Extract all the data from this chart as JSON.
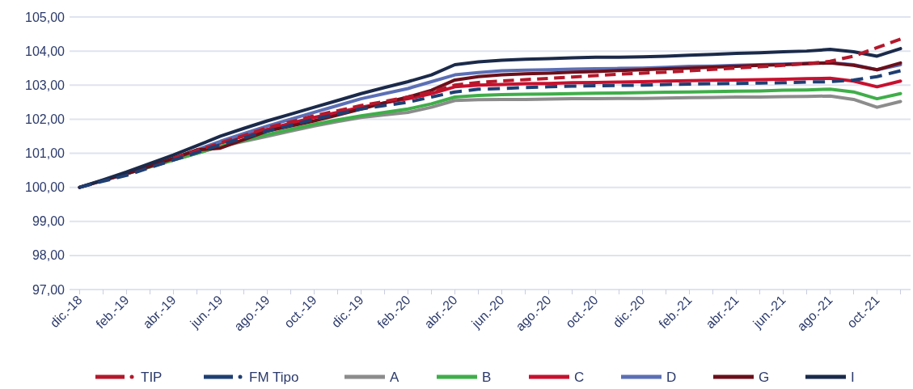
{
  "chart_data": {
    "type": "line",
    "categories": [
      "dic.-18",
      null,
      "feb.-19",
      null,
      "abr.-19",
      null,
      "jun.-19",
      null,
      "ago.-19",
      null,
      "oct.-19",
      null,
      "dic.-19",
      null,
      "feb.-20",
      null,
      "abr.-20",
      null,
      "jun.-20",
      null,
      "ago.-20",
      null,
      "oct.-20",
      null,
      "dic.-20",
      null,
      "feb.-21",
      null,
      "abr.-21",
      null,
      "jun.-21",
      null,
      "ago.-21",
      null,
      "oct.-21",
      null
    ],
    "ylim": [
      97,
      105
    ],
    "yticks": [
      {
        "value": 97,
        "label": "97,00"
      },
      {
        "value": 98,
        "label": "98,00"
      },
      {
        "value": 99,
        "label": "99,00"
      },
      {
        "value": 100,
        "label": "100,00"
      },
      {
        "value": 101,
        "label": "101,00"
      },
      {
        "value": 102,
        "label": "102,00"
      },
      {
        "value": 103,
        "label": "103,00"
      },
      {
        "value": 104,
        "label": "104,00"
      },
      {
        "value": 105,
        "label": "105,00"
      }
    ],
    "grid": "y",
    "legend": "bottom",
    "series": [
      {
        "name": "TIP",
        "color": "#b5182b",
        "line_style": "dashed",
        "values": [
          null,
          null,
          null,
          null,
          100.85,
          101.08,
          101.3,
          101.52,
          101.75,
          101.92,
          102.1,
          102.25,
          102.4,
          102.52,
          102.65,
          102.8,
          103.0,
          103.08,
          103.12,
          103.16,
          103.2,
          103.24,
          103.28,
          103.32,
          103.35,
          103.38,
          103.42,
          103.46,
          103.5,
          103.54,
          103.58,
          103.63,
          103.7,
          103.85,
          104.1,
          104.35
        ]
      },
      {
        "name": "FM Tipo",
        "color": "#1f3f73",
        "line_style": "dashed",
        "values": [
          100,
          100.18,
          100.35,
          100.58,
          100.8,
          101.02,
          101.25,
          101.45,
          101.65,
          101.82,
          102.0,
          102.15,
          102.3,
          102.4,
          102.5,
          102.65,
          102.8,
          102.88,
          102.9,
          102.93,
          102.95,
          102.97,
          102.98,
          102.99,
          103.0,
          103.02,
          103.03,
          103.04,
          103.05,
          103.06,
          103.07,
          103.09,
          103.1,
          103.15,
          103.25,
          103.42
        ]
      },
      {
        "name": "A",
        "color": "#8c8c8c",
        "line_style": "solid",
        "values": [
          100,
          100.2,
          100.4,
          100.6,
          100.8,
          101.0,
          101.2,
          101.35,
          101.5,
          101.65,
          101.8,
          101.93,
          102.05,
          102.13,
          102.2,
          102.35,
          102.55,
          102.57,
          102.58,
          102.58,
          102.59,
          102.6,
          102.6,
          102.61,
          102.61,
          102.62,
          102.63,
          102.64,
          102.65,
          102.65,
          102.66,
          102.67,
          102.68,
          102.58,
          102.35,
          102.52
        ]
      },
      {
        "name": "B",
        "color": "#3fae49",
        "line_style": "solid",
        "values": [
          null,
          null,
          100.4,
          100.6,
          100.8,
          101.0,
          101.2,
          101.38,
          101.55,
          101.7,
          101.85,
          101.98,
          102.1,
          102.2,
          102.3,
          102.45,
          102.65,
          102.7,
          102.72,
          102.73,
          102.74,
          102.75,
          102.76,
          102.77,
          102.78,
          102.79,
          102.8,
          102.81,
          102.82,
          102.83,
          102.85,
          102.86,
          102.88,
          102.8,
          102.6,
          102.75
        ]
      },
      {
        "name": "C",
        "color": "#c8102e",
        "line_style": "solid",
        "values": [
          null,
          null,
          null,
          null,
          100.85,
          101.08,
          101.3,
          101.5,
          101.7,
          101.88,
          102.05,
          102.2,
          102.35,
          102.48,
          102.6,
          102.75,
          102.95,
          103.0,
          103.02,
          103.04,
          103.05,
          103.07,
          103.08,
          103.09,
          103.1,
          103.12,
          103.13,
          103.14,
          103.15,
          103.16,
          103.17,
          103.19,
          103.2,
          103.12,
          102.95,
          103.12
        ]
      },
      {
        "name": "D",
        "color": "#5b6fb5",
        "line_style": "solid",
        "values": [
          100,
          100.2,
          100.4,
          100.62,
          100.85,
          101.1,
          101.35,
          101.58,
          101.8,
          102.0,
          102.2,
          102.4,
          102.6,
          102.75,
          102.9,
          103.1,
          103.3,
          103.37,
          103.42,
          103.44,
          103.45,
          103.47,
          103.48,
          103.49,
          103.5,
          103.52,
          103.55,
          103.56,
          103.58,
          103.6,
          103.62,
          103.64,
          103.66,
          103.6,
          103.45,
          103.6
        ]
      },
      {
        "name": "G",
        "color": "#6b0f1a",
        "line_style": "solid",
        "values": [
          100,
          100.2,
          100.4,
          100.62,
          100.85,
          101.1,
          101.15,
          101.4,
          101.65,
          101.8,
          101.95,
          102.12,
          102.3,
          102.48,
          102.65,
          102.85,
          103.15,
          103.25,
          103.3,
          103.33,
          103.35,
          103.38,
          103.4,
          103.43,
          103.45,
          103.48,
          103.5,
          103.53,
          103.55,
          103.58,
          103.6,
          103.63,
          103.65,
          103.58,
          103.45,
          103.65
        ]
      },
      {
        "name": "I",
        "color": "#1b2a4a",
        "line_style": "solid",
        "values": [
          100,
          100.22,
          100.45,
          100.7,
          100.95,
          101.22,
          101.5,
          101.73,
          101.95,
          102.15,
          102.35,
          102.55,
          102.75,
          102.93,
          103.1,
          103.3,
          103.6,
          103.68,
          103.73,
          103.76,
          103.78,
          103.8,
          103.82,
          103.82,
          103.83,
          103.85,
          103.88,
          103.9,
          103.93,
          103.95,
          103.98,
          104.0,
          104.05,
          103.98,
          103.85,
          104.07
        ]
      }
    ]
  }
}
